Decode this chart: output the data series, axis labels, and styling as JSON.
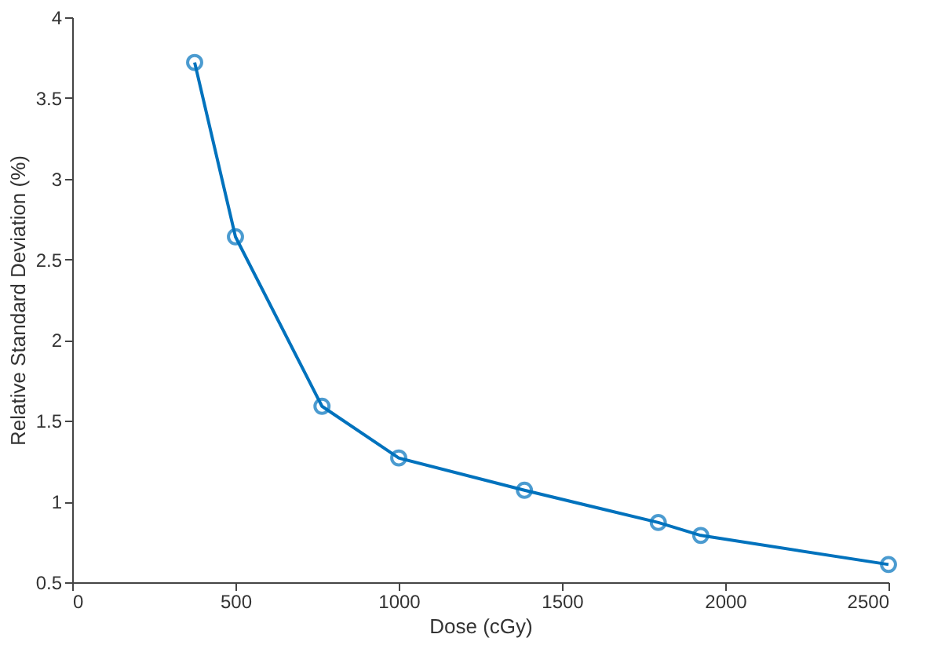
{
  "chart_data": {
    "type": "line",
    "xlabel": "Dose (cGy)",
    "ylabel": "Relative Standard Deviation (%)",
    "x": [
      375,
      500,
      765,
      1000,
      1385,
      1795,
      1925,
      2500
    ],
    "series": [
      {
        "color": "#0072bd",
        "values": [
          3.72,
          2.64,
          1.59,
          1.27,
          1.07,
          0.87,
          0.79,
          0.61
        ]
      }
    ],
    "xlim": [
      0,
      2500
    ],
    "xticks": [
      0,
      500,
      1000,
      1500,
      2000,
      2500
    ],
    "ylim": [
      0.5,
      4
    ],
    "yticks": [
      0.5,
      1,
      1.5,
      2,
      2.5,
      3,
      3.5,
      4
    ],
    "marker": "circle",
    "line_style": "solid",
    "grid": false
  }
}
